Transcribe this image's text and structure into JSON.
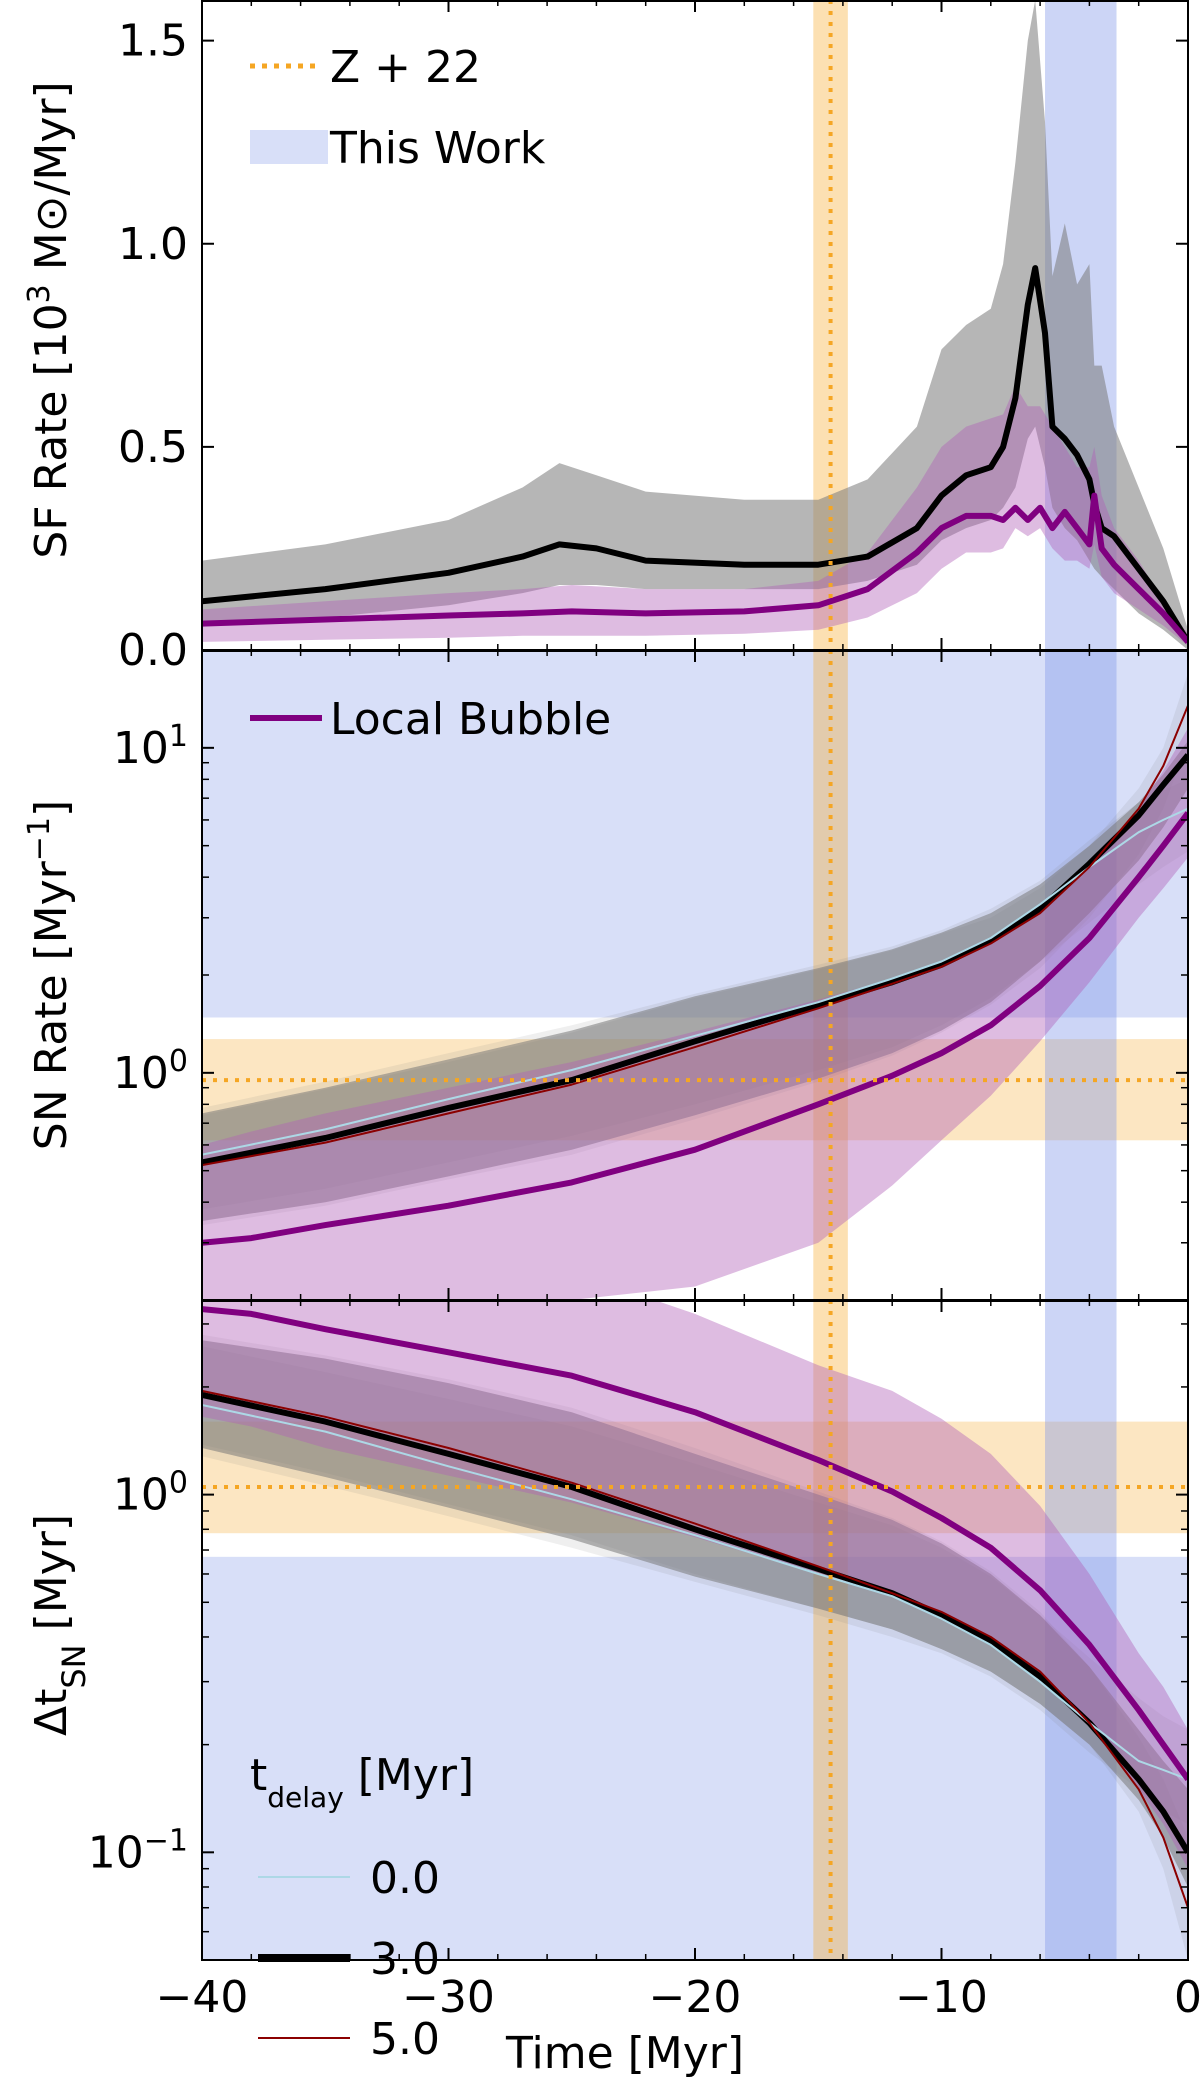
{
  "chart_data": [
    {
      "type": "line",
      "panel": "top",
      "ylabel": "SF Rate [10³ M⊙/Myr]",
      "yscale": "linear",
      "xlim": [
        -40,
        0
      ],
      "ylim": [
        0,
        1.6
      ],
      "yticks": [
        0.0,
        0.5,
        1.0,
        1.5
      ],
      "ytick_labels": [
        "0.0",
        "0.5",
        "1.0",
        "1.5"
      ],
      "legend": [
        {
          "label": "Z + 22",
          "style": "orange-dotted"
        },
        {
          "label": "This Work",
          "style": "blue-band"
        }
      ],
      "series": [
        {
          "name": "This Work median (t_delay 3.0)",
          "color": "#000000",
          "x": [
            -40,
            -35,
            -30,
            -27,
            -25.5,
            -24,
            -22,
            -18,
            -15,
            -13,
            -11,
            -10,
            -9,
            -8,
            -7.5,
            -7,
            -6.5,
            -6.2,
            -5.8,
            -5.5,
            -5,
            -4.5,
            -4,
            -3.8,
            -3.5,
            -3,
            -2,
            -1,
            0
          ],
          "y": [
            0.12,
            0.15,
            0.19,
            0.23,
            0.26,
            0.25,
            0.22,
            0.21,
            0.21,
            0.23,
            0.3,
            0.38,
            0.43,
            0.45,
            0.5,
            0.62,
            0.85,
            0.94,
            0.78,
            0.55,
            0.52,
            0.48,
            0.42,
            0.36,
            0.3,
            0.28,
            0.2,
            0.12,
            0.02
          ],
          "band_lo": [
            0.06,
            0.08,
            0.11,
            0.14,
            0.16,
            0.16,
            0.15,
            0.15,
            0.15,
            0.17,
            0.21,
            0.27,
            0.3,
            0.32,
            0.35,
            0.4,
            0.52,
            0.55,
            0.45,
            0.35,
            0.3,
            0.27,
            0.22,
            0.2,
            0.18,
            0.15,
            0.09,
            0.05,
            0.0
          ],
          "band_hi": [
            0.22,
            0.26,
            0.32,
            0.4,
            0.46,
            0.43,
            0.39,
            0.37,
            0.37,
            0.42,
            0.55,
            0.74,
            0.8,
            0.84,
            0.95,
            1.2,
            1.5,
            1.6,
            1.3,
            0.92,
            1.05,
            0.9,
            0.95,
            0.7,
            0.7,
            0.55,
            0.4,
            0.25,
            0.05
          ]
        },
        {
          "name": "Local Bubble",
          "color": "#800080",
          "x": [
            -40,
            -35,
            -30,
            -27,
            -25,
            -22,
            -18,
            -15,
            -13,
            -11,
            -10,
            -9,
            -8,
            -7.5,
            -7,
            -6.5,
            -6,
            -5.5,
            -5,
            -4.5,
            -4,
            -3.8,
            -3.5,
            -3,
            -2,
            -1,
            0
          ],
          "y": [
            0.065,
            0.075,
            0.085,
            0.09,
            0.095,
            0.09,
            0.095,
            0.11,
            0.15,
            0.24,
            0.3,
            0.33,
            0.33,
            0.32,
            0.35,
            0.32,
            0.35,
            0.3,
            0.34,
            0.3,
            0.26,
            0.38,
            0.25,
            0.21,
            0.15,
            0.09,
            0.02
          ],
          "band_lo": [
            0.02,
            0.025,
            0.03,
            0.035,
            0.035,
            0.035,
            0.04,
            0.05,
            0.08,
            0.14,
            0.2,
            0.24,
            0.24,
            0.25,
            0.3,
            0.28,
            0.3,
            0.25,
            0.22,
            0.22,
            0.2,
            0.26,
            0.18,
            0.14,
            0.1,
            0.06,
            0.01
          ],
          "band_hi": [
            0.1,
            0.12,
            0.14,
            0.15,
            0.16,
            0.15,
            0.15,
            0.17,
            0.24,
            0.4,
            0.5,
            0.55,
            0.57,
            0.58,
            0.65,
            0.6,
            0.6,
            0.55,
            0.5,
            0.45,
            0.45,
            0.5,
            0.38,
            0.3,
            0.22,
            0.12,
            0.04
          ]
        }
      ],
      "vertical_bands": [
        {
          "name": "Z + 22",
          "x": -14.5,
          "range": [
            -15.2,
            -13.8
          ],
          "color": "#f5a623"
        },
        {
          "name": "This Work",
          "range": [
            -5.8,
            -2.9
          ],
          "color": "#7f95e8"
        }
      ]
    },
    {
      "type": "line",
      "panel": "middle",
      "ylabel": "SN Rate [Myr⁻¹]",
      "yscale": "log",
      "xlim": [
        -40,
        0
      ],
      "ylim": [
        0.2,
        20
      ],
      "yticks": [
        1,
        10
      ],
      "ytick_labels": [
        "10⁰",
        "10¹"
      ],
      "legend": [
        {
          "label": "Local Bubble",
          "style": "purple-line"
        }
      ],
      "series": [
        {
          "name": "t_delay 3.0",
          "color": "#000000",
          "x": [
            -40,
            -35,
            -30,
            -25,
            -20,
            -15,
            -12,
            -10,
            -8,
            -6,
            -4,
            -2,
            -1,
            0
          ],
          "y": [
            0.53,
            0.63,
            0.78,
            0.95,
            1.25,
            1.62,
            1.9,
            2.15,
            2.55,
            3.2,
            4.4,
            6.2,
            7.7,
            9.5
          ],
          "band_lo": [
            0.35,
            0.4,
            0.48,
            0.58,
            0.74,
            0.96,
            1.15,
            1.35,
            1.65,
            2.2,
            3.1,
            4.5,
            5.7,
            7.5
          ],
          "band_hi": [
            0.75,
            0.9,
            1.1,
            1.35,
            1.72,
            2.1,
            2.4,
            2.7,
            3.1,
            3.8,
            5.0,
            6.8,
            8.3,
            10.5
          ]
        },
        {
          "name": "t_delay 0.0",
          "color": "#add8e6",
          "x": [
            -40,
            -35,
            -30,
            -25,
            -20,
            -15,
            -12,
            -10,
            -8,
            -6,
            -4,
            -2,
            -1,
            0
          ],
          "y": [
            0.56,
            0.67,
            0.83,
            1.02,
            1.3,
            1.65,
            1.95,
            2.2,
            2.6,
            3.3,
            4.3,
            5.5,
            6.0,
            6.5
          ],
          "band_lo": [
            0.38,
            0.44,
            0.53,
            0.64,
            0.8,
            1.02,
            1.2,
            1.4,
            1.7,
            2.2,
            2.9,
            3.8,
            4.3,
            4.8
          ],
          "band_hi": [
            0.78,
            0.94,
            1.15,
            1.4,
            1.75,
            2.15,
            2.45,
            2.75,
            3.2,
            3.9,
            5.2,
            6.8,
            7.4,
            8.0
          ]
        },
        {
          "name": "t_delay 5.0",
          "color": "#8b0000",
          "x": [
            -40,
            -35,
            -30,
            -25,
            -20,
            -15,
            -12,
            -10,
            -8,
            -6,
            -4,
            -2,
            -1,
            0
          ],
          "y": [
            0.52,
            0.61,
            0.75,
            0.92,
            1.2,
            1.58,
            1.88,
            2.12,
            2.5,
            3.1,
            4.3,
            6.5,
            8.8,
            13.5
          ],
          "band_lo": [
            0.34,
            0.39,
            0.47,
            0.56,
            0.72,
            0.94,
            1.13,
            1.33,
            1.62,
            2.1,
            3.0,
            4.7,
            6.5,
            10.5
          ],
          "band_hi": [
            0.74,
            0.89,
            1.08,
            1.33,
            1.7,
            2.08,
            2.38,
            2.68,
            3.0,
            3.7,
            5.0,
            7.5,
            10.0,
            17.0
          ]
        },
        {
          "name": "Local Bubble",
          "color": "#800080",
          "x": [
            -40,
            -38,
            -35,
            -30,
            -25,
            -20,
            -15,
            -12,
            -10,
            -8,
            -6,
            -4,
            -2,
            -1,
            0
          ],
          "y": [
            0.3,
            0.31,
            0.34,
            0.39,
            0.46,
            0.58,
            0.8,
            0.98,
            1.15,
            1.4,
            1.85,
            2.6,
            4.0,
            5.0,
            6.3
          ],
          "band_lo": [
            0.16,
            0.16,
            0.17,
            0.19,
            0.2,
            0.22,
            0.3,
            0.45,
            0.62,
            0.85,
            1.25,
            1.9,
            3.0,
            3.7,
            4.6
          ],
          "band_hi": [
            0.6,
            0.66,
            0.75,
            0.9,
            1.08,
            1.34,
            1.68,
            1.95,
            2.2,
            2.6,
            3.2,
            4.4,
            6.5,
            8.5,
            11.5
          ]
        }
      ],
      "horizontal_bands": [
        {
          "name": "Z + 22",
          "y": 0.95,
          "range": [
            0.62,
            1.27
          ],
          "color": "#f5a623"
        },
        {
          "name": "This Work",
          "range": [
            1.48,
            20
          ],
          "color": "#7f95e8"
        }
      ],
      "vertical_bands": [
        {
          "name": "Z + 22",
          "x": -14.5,
          "range": [
            -15.2,
            -13.8
          ],
          "color": "#f5a623"
        },
        {
          "name": "This Work",
          "range": [
            -5.8,
            -2.9
          ],
          "color": "#7f95e8"
        }
      ]
    },
    {
      "type": "line",
      "panel": "bottom",
      "ylabel": "Δt_SN [Myr]",
      "xlabel": "Time [Myr]",
      "yscale": "log",
      "xlim": [
        -40,
        0
      ],
      "ylim": [
        0.05,
        3.5
      ],
      "yticks": [
        0.1,
        1
      ],
      "ytick_labels": [
        "10⁻¹",
        "10⁰"
      ],
      "xticks": [
        -40,
        -30,
        -20,
        -10,
        0
      ],
      "xtick_labels": [
        "−40",
        "−30",
        "−20",
        "−10",
        "0"
      ],
      "legend_title": "t_delay [Myr]",
      "legend": [
        {
          "label": "0.0",
          "color": "#add8e6"
        },
        {
          "label": "3.0",
          "color": "#000000"
        },
        {
          "label": "5.0",
          "color": "#8b0000"
        }
      ],
      "series": [
        {
          "name": "t_delay 3.0",
          "color": "#000000",
          "x": [
            -40,
            -35,
            -30,
            -25,
            -20,
            -15,
            -12,
            -10,
            -8,
            -6,
            -4,
            -2,
            -1,
            0
          ],
          "y": [
            1.9,
            1.6,
            1.3,
            1.05,
            0.8,
            0.62,
            0.53,
            0.46,
            0.39,
            0.31,
            0.23,
            0.16,
            0.13,
            0.1
          ],
          "band_lo": [
            1.35,
            1.12,
            0.92,
            0.75,
            0.59,
            0.48,
            0.42,
            0.37,
            0.32,
            0.26,
            0.2,
            0.14,
            0.11,
            0.08
          ],
          "band_hi": [
            2.7,
            2.4,
            2.05,
            1.7,
            1.3,
            1.0,
            0.85,
            0.73,
            0.6,
            0.46,
            0.33,
            0.22,
            0.18,
            0.15
          ]
        },
        {
          "name": "t_delay 0.0",
          "color": "#add8e6",
          "x": [
            -40,
            -35,
            -30,
            -25,
            -20,
            -15,
            -12,
            -10,
            -8,
            -6,
            -4,
            -2,
            -1,
            0
          ],
          "y": [
            1.78,
            1.5,
            1.2,
            0.97,
            0.77,
            0.6,
            0.52,
            0.45,
            0.38,
            0.3,
            0.23,
            0.18,
            0.17,
            0.16
          ],
          "band_lo": [
            1.28,
            1.06,
            0.87,
            0.71,
            0.57,
            0.46,
            0.4,
            0.36,
            0.31,
            0.25,
            0.19,
            0.15,
            0.13,
            0.12
          ],
          "band_hi": [
            2.6,
            2.2,
            1.85,
            1.55,
            1.22,
            0.95,
            0.82,
            0.71,
            0.59,
            0.46,
            0.35,
            0.27,
            0.24,
            0.22
          ]
        },
        {
          "name": "t_delay 5.0",
          "color": "#8b0000",
          "x": [
            -40,
            -35,
            -30,
            -25,
            -20,
            -15,
            -12,
            -10,
            -8,
            -6,
            -4,
            -2,
            -1,
            0
          ],
          "y": [
            1.95,
            1.65,
            1.35,
            1.08,
            0.83,
            0.63,
            0.53,
            0.47,
            0.4,
            0.32,
            0.23,
            0.15,
            0.11,
            0.07
          ],
          "band_lo": [
            1.38,
            1.15,
            0.94,
            0.77,
            0.6,
            0.48,
            0.42,
            0.37,
            0.32,
            0.26,
            0.2,
            0.13,
            0.09,
            0.05
          ],
          "band_hi": [
            2.8,
            2.45,
            2.1,
            1.75,
            1.35,
            1.02,
            0.86,
            0.74,
            0.61,
            0.47,
            0.33,
            0.21,
            0.16,
            0.11
          ]
        },
        {
          "name": "Local Bubble",
          "color": "#800080",
          "x": [
            -40,
            -38,
            -35,
            -30,
            -25,
            -20,
            -15,
            -12,
            -10,
            -8,
            -6,
            -4,
            -2,
            -1,
            0
          ],
          "y": [
            3.3,
            3.2,
            2.9,
            2.5,
            2.15,
            1.7,
            1.25,
            1.02,
            0.86,
            0.71,
            0.54,
            0.38,
            0.25,
            0.2,
            0.16
          ],
          "band_lo": [
            1.65,
            1.55,
            1.35,
            1.13,
            0.95,
            0.76,
            0.6,
            0.52,
            0.46,
            0.39,
            0.31,
            0.23,
            0.15,
            0.12,
            0.09
          ],
          "band_hi": [
            6.0,
            5.7,
            5.5,
            5.0,
            4.2,
            3.2,
            2.3,
            1.95,
            1.63,
            1.3,
            0.93,
            0.6,
            0.36,
            0.29,
            0.22
          ]
        }
      ],
      "horizontal_bands": [
        {
          "name": "Z + 22",
          "y": 1.05,
          "range": [
            0.78,
            1.6
          ],
          "color": "#f5a623"
        },
        {
          "name": "This Work",
          "range": [
            0.05,
            0.67
          ],
          "color": "#7f95e8"
        }
      ],
      "vertical_bands": [
        {
          "name": "Z + 22",
          "x": -14.5,
          "range": [
            -15.2,
            -13.8
          ],
          "color": "#f5a623"
        },
        {
          "name": "This Work",
          "range": [
            -5.8,
            -2.9
          ],
          "color": "#7f95e8"
        }
      ]
    }
  ]
}
